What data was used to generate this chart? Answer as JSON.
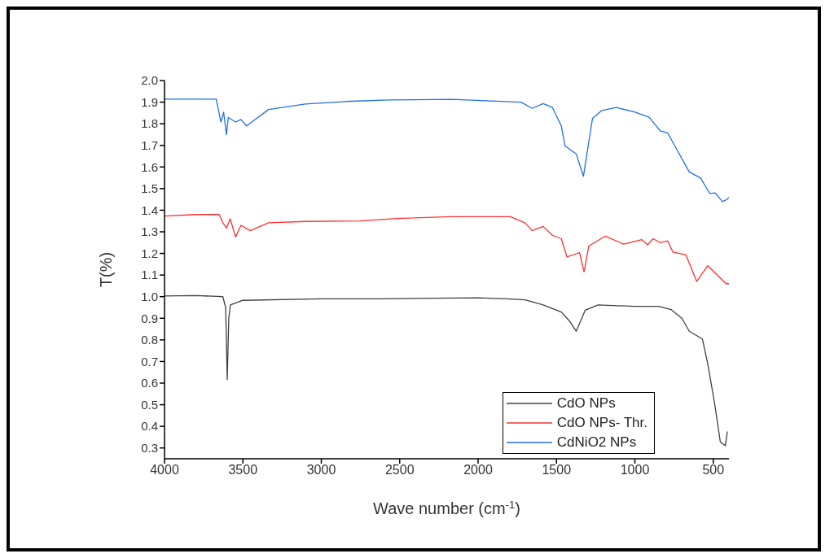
{
  "chart_data": {
    "type": "line",
    "xlabel": "Wave number (cm$^{-1}$)",
    "ylabel": "T(%)",
    "xlim": [
      4000,
      400
    ],
    "xticks": [
      4000,
      3500,
      3000,
      2500,
      2000,
      1500,
      1000,
      500
    ],
    "ylim": [
      0.25,
      2.0
    ],
    "yticks": [
      0.3,
      0.4,
      0.5,
      0.6,
      0.7,
      0.8,
      0.9,
      {
        "value": 1,
        "label": "1.0"
      },
      1.1,
      1.2,
      1.3,
      1.4,
      1.5,
      1.6,
      1.7,
      1.8,
      1.9,
      {
        "value": 2,
        "label": "2.0"
      }
    ],
    "grid": false,
    "legend": "bottom right",
    "marker": "none",
    "line_style": "solid",
    "series": [
      {
        "name": "CdO NPs",
        "color": "#404040",
        "x": [
          4000,
          3800,
          3628,
          3610,
          3600,
          3590,
          3580,
          3500,
          3000,
          2635,
          2000,
          1819,
          1700,
          1585,
          1469,
          1420,
          1374,
          1317,
          1235,
          1003,
          850,
          768,
          700,
          653,
          569,
          535,
          490,
          455,
          423,
          410
        ],
        "values": [
          1.003,
          1.005,
          1.0,
          0.95,
          0.617,
          0.9,
          0.962,
          0.983,
          0.99,
          0.99,
          0.995,
          0.99,
          0.985,
          0.962,
          0.929,
          0.89,
          0.84,
          0.937,
          0.962,
          0.955,
          0.955,
          0.94,
          0.9,
          0.84,
          0.804,
          0.689,
          0.5,
          0.328,
          0.31,
          0.376
        ]
      },
      {
        "name": "CdO NPs- Thr.",
        "color": "#ff3030",
        "x": [
          4000,
          3800,
          3651,
          3628,
          3605,
          3581,
          3547,
          3512,
          3453,
          3336,
          3102,
          2753,
          2520,
          2170,
          1795,
          1702,
          1655,
          1585,
          1526,
          1469,
          1433,
          1353,
          1324,
          1294,
          1188,
          1071,
          956,
          919,
          884,
          838,
          791,
          757,
          674,
          606,
          535,
          488,
          418,
          400
        ],
        "values": [
          1.373,
          1.38,
          1.38,
          1.342,
          1.317,
          1.36,
          1.276,
          1.33,
          1.305,
          1.342,
          1.348,
          1.35,
          1.362,
          1.37,
          1.37,
          1.342,
          1.305,
          1.325,
          1.284,
          1.268,
          1.184,
          1.204,
          1.115,
          1.234,
          1.28,
          1.243,
          1.264,
          1.24,
          1.268,
          1.25,
          1.258,
          1.206,
          1.193,
          1.07,
          1.143,
          1.11,
          1.06,
          1.06
        ]
      },
      {
        "name": "CdNiO2 NPs",
        "color": "#1f6fe8",
        "x": [
          4000,
          3800,
          3670,
          3640,
          3623,
          3605,
          3593,
          3547,
          3513,
          3477,
          3336,
          3102,
          2846,
          2567,
          2170,
          1725,
          1655,
          1585,
          1526,
          1469,
          1445,
          1374,
          1328,
          1306,
          1270,
          1212,
          1118,
          1003,
          909,
          838,
          791,
          747,
          653,
          581,
          522,
          488,
          441,
          412,
          400
        ],
        "values": [
          1.914,
          1.914,
          1.914,
          1.808,
          1.854,
          1.75,
          1.829,
          1.808,
          1.82,
          1.79,
          1.866,
          1.891,
          1.903,
          1.91,
          1.913,
          1.9,
          1.871,
          1.893,
          1.875,
          1.79,
          1.697,
          1.66,
          1.557,
          1.66,
          1.825,
          1.861,
          1.875,
          1.855,
          1.83,
          1.767,
          1.758,
          1.7,
          1.577,
          1.549,
          1.477,
          1.48,
          1.44,
          1.45,
          1.46
        ]
      }
    ]
  }
}
